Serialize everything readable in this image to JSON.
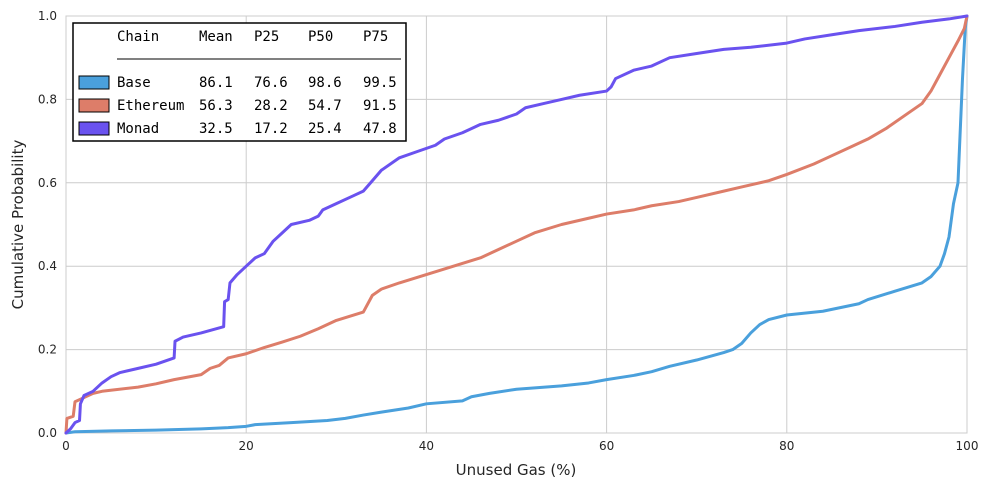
{
  "chart_data": {
    "type": "line",
    "title": "",
    "xlabel": "Unused Gas (%)",
    "ylabel": "Cumulative Probability",
    "xlim": [
      0,
      100
    ],
    "ylim": [
      0,
      1
    ],
    "xticks": [
      0,
      20,
      40,
      60,
      80,
      100
    ],
    "yticks": [
      0.0,
      0.2,
      0.4,
      0.6,
      0.8,
      1.0
    ],
    "x_tick_labels": [
      "0",
      "20",
      "40",
      "60",
      "80",
      "100"
    ],
    "y_tick_labels": [
      "0.0",
      "0.2",
      "0.4",
      "0.6",
      "0.8",
      "1.0"
    ],
    "grid": true,
    "legend": {
      "placement": "top-left",
      "header": [
        "Chain",
        "Mean",
        "P25",
        "P50",
        "P75"
      ],
      "rows": [
        {
          "name": "Base",
          "mean": "86.1",
          "p25": "76.6",
          "p50": "98.6",
          "p75": "99.5",
          "color": "#4aa0dc"
        },
        {
          "name": "Ethereum",
          "mean": "56.3",
          "p25": "28.2",
          "p50": "54.7",
          "p75": "91.5",
          "color": "#dd7d69"
        },
        {
          "name": "Monad",
          "mean": "32.5",
          "p25": "17.2",
          "p50": "25.4",
          "p75": "47.8",
          "color": "#6a52ef"
        }
      ]
    },
    "series": [
      {
        "name": "Base",
        "color": "#4aa0dc",
        "points": [
          [
            0,
            0
          ],
          [
            1,
            0.003
          ],
          [
            5,
            0.005
          ],
          [
            10,
            0.007
          ],
          [
            15,
            0.01
          ],
          [
            18,
            0.013
          ],
          [
            20,
            0.016
          ],
          [
            21,
            0.02
          ],
          [
            25,
            0.025
          ],
          [
            29,
            0.03
          ],
          [
            31,
            0.035
          ],
          [
            33,
            0.043
          ],
          [
            35,
            0.05
          ],
          [
            38,
            0.06
          ],
          [
            40,
            0.07
          ],
          [
            44,
            0.077
          ],
          [
            45,
            0.087
          ],
          [
            47,
            0.095
          ],
          [
            50,
            0.105
          ],
          [
            55,
            0.113
          ],
          [
            58,
            0.12
          ],
          [
            60,
            0.128
          ],
          [
            63,
            0.138
          ],
          [
            65,
            0.147
          ],
          [
            67,
            0.16
          ],
          [
            70,
            0.175
          ],
          [
            73,
            0.193
          ],
          [
            74,
            0.2
          ],
          [
            75,
            0.215
          ],
          [
            76,
            0.24
          ],
          [
            77,
            0.26
          ],
          [
            78,
            0.272
          ],
          [
            80,
            0.283
          ],
          [
            84,
            0.292
          ],
          [
            88,
            0.31
          ],
          [
            89,
            0.32
          ],
          [
            92,
            0.34
          ],
          [
            95,
            0.36
          ],
          [
            96,
            0.375
          ],
          [
            97,
            0.4
          ],
          [
            97.5,
            0.43
          ],
          [
            98,
            0.47
          ],
          [
            98.5,
            0.55
          ],
          [
            99,
            0.6
          ],
          [
            99.2,
            0.7
          ],
          [
            99.5,
            0.85
          ],
          [
            99.8,
            0.97
          ],
          [
            100,
            1.0
          ]
        ]
      },
      {
        "name": "Ethereum",
        "color": "#dd7d69",
        "points": [
          [
            0,
            0
          ],
          [
            0.1,
            0.035
          ],
          [
            0.8,
            0.04
          ],
          [
            1,
            0.075
          ],
          [
            2,
            0.085
          ],
          [
            3,
            0.095
          ],
          [
            4,
            0.1
          ],
          [
            8,
            0.11
          ],
          [
            10,
            0.118
          ],
          [
            12,
            0.128
          ],
          [
            15,
            0.14
          ],
          [
            16,
            0.155
          ],
          [
            17,
            0.162
          ],
          [
            18,
            0.18
          ],
          [
            20,
            0.19
          ],
          [
            22,
            0.205
          ],
          [
            24,
            0.218
          ],
          [
            26,
            0.232
          ],
          [
            28,
            0.25
          ],
          [
            30,
            0.27
          ],
          [
            33,
            0.29
          ],
          [
            34,
            0.33
          ],
          [
            35,
            0.345
          ],
          [
            37,
            0.36
          ],
          [
            40,
            0.38
          ],
          [
            43,
            0.4
          ],
          [
            46,
            0.42
          ],
          [
            48,
            0.44
          ],
          [
            50,
            0.46
          ],
          [
            52,
            0.48
          ],
          [
            55,
            0.5
          ],
          [
            58,
            0.515
          ],
          [
            60,
            0.525
          ],
          [
            63,
            0.535
          ],
          [
            65,
            0.545
          ],
          [
            68,
            0.555
          ],
          [
            70,
            0.565
          ],
          [
            73,
            0.58
          ],
          [
            75,
            0.59
          ],
          [
            78,
            0.605
          ],
          [
            80,
            0.62
          ],
          [
            83,
            0.645
          ],
          [
            85,
            0.665
          ],
          [
            87,
            0.685
          ],
          [
            89,
            0.705
          ],
          [
            91,
            0.73
          ],
          [
            93,
            0.76
          ],
          [
            95,
            0.79
          ],
          [
            96,
            0.82
          ],
          [
            97,
            0.86
          ],
          [
            98,
            0.9
          ],
          [
            99,
            0.94
          ],
          [
            99.7,
            0.97
          ],
          [
            100,
            1.0
          ]
        ]
      },
      {
        "name": "Monad",
        "color": "#6a52ef",
        "points": [
          [
            0,
            0
          ],
          [
            0.5,
            0.01
          ],
          [
            1,
            0.025
          ],
          [
            1.5,
            0.03
          ],
          [
            1.6,
            0.07
          ],
          [
            2,
            0.09
          ],
          [
            3,
            0.1
          ],
          [
            4,
            0.12
          ],
          [
            5,
            0.135
          ],
          [
            6,
            0.145
          ],
          [
            8,
            0.155
          ],
          [
            10,
            0.165
          ],
          [
            12,
            0.18
          ],
          [
            12.1,
            0.22
          ],
          [
            13,
            0.23
          ],
          [
            15,
            0.24
          ],
          [
            17.5,
            0.255
          ],
          [
            17.6,
            0.315
          ],
          [
            18,
            0.32
          ],
          [
            18.2,
            0.36
          ],
          [
            19,
            0.38
          ],
          [
            20,
            0.4
          ],
          [
            21,
            0.42
          ],
          [
            22,
            0.43
          ],
          [
            23,
            0.46
          ],
          [
            24,
            0.48
          ],
          [
            25,
            0.5
          ],
          [
            27,
            0.51
          ],
          [
            28,
            0.52
          ],
          [
            28.5,
            0.535
          ],
          [
            30,
            0.55
          ],
          [
            32,
            0.57
          ],
          [
            33,
            0.58
          ],
          [
            34,
            0.605
          ],
          [
            35,
            0.63
          ],
          [
            37,
            0.66
          ],
          [
            39,
            0.675
          ],
          [
            41,
            0.69
          ],
          [
            42,
            0.705
          ],
          [
            44,
            0.72
          ],
          [
            46,
            0.74
          ],
          [
            48,
            0.75
          ],
          [
            50,
            0.765
          ],
          [
            51,
            0.78
          ],
          [
            53,
            0.79
          ],
          [
            55,
            0.8
          ],
          [
            57,
            0.81
          ],
          [
            60,
            0.82
          ],
          [
            60.5,
            0.83
          ],
          [
            61,
            0.85
          ],
          [
            63,
            0.87
          ],
          [
            65,
            0.88
          ],
          [
            67,
            0.9
          ],
          [
            70,
            0.91
          ],
          [
            73,
            0.92
          ],
          [
            76,
            0.925
          ],
          [
            80,
            0.935
          ],
          [
            82,
            0.945
          ],
          [
            85,
            0.955
          ],
          [
            88,
            0.965
          ],
          [
            92,
            0.975
          ],
          [
            95,
            0.985
          ],
          [
            98,
            0.993
          ],
          [
            100,
            1.0
          ]
        ]
      }
    ]
  }
}
